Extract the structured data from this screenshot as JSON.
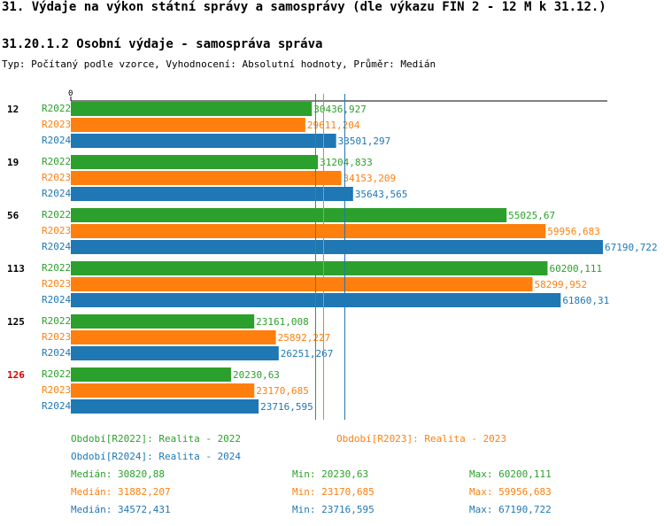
{
  "title": "31. Výdaje na výkon státní správy a samosprávy (dle výkazu FIN 2 - 12 M k 31.12.)",
  "subtitle": "31.20.1.2 Osobní výdaje - samospráva správa",
  "typeline": "Typ: Počítaný podle vzorce, Vyhodnocení: Absolutní hodnoty, Průměr: Medián",
  "colors": {
    "R2022": "#2ca02c",
    "R2023": "#ff7f0e",
    "R2024": "#1f77b4",
    "highlight": "#dd0000"
  },
  "chart_data": {
    "type": "bar",
    "orientation": "horizontal",
    "axis_zero_label": "0",
    "xlim": [
      0,
      67190.722
    ],
    "categories": [
      "12",
      "19",
      "56",
      "113",
      "125",
      "126"
    ],
    "highlighted_category": "126",
    "series": [
      {
        "name": "R2022",
        "values": [
          30436.927,
          31204.833,
          55025.67,
          60200.111,
          23161.008,
          20230.63
        ],
        "labels": [
          "30436,927",
          "31204,833",
          "55025,67",
          "60200,111",
          "23161,008",
          "20230,63"
        ]
      },
      {
        "name": "R2023",
        "values": [
          29611.204,
          34153.209,
          59956.683,
          58299.952,
          25892.227,
          23170.685
        ],
        "labels": [
          "29611,204",
          "34153,209",
          "59956,683",
          "58299,952",
          "25892,227",
          "23170,685"
        ]
      },
      {
        "name": "R2024",
        "values": [
          33501.297,
          35643.565,
          67190.722,
          61860.31,
          26251.267,
          23716.595
        ],
        "labels": [
          "33501,297",
          "35643,565",
          "67190,722",
          "61860,31",
          "26251,267",
          "23716,595"
        ]
      }
    ],
    "medians": [
      30820.88,
      31882.207,
      34572.431
    ]
  },
  "legend": {
    "period_labels": [
      "Období[R2022]: Realita - 2022",
      "Období[R2023]: Realita - 2023",
      "Období[R2024]: Realita - 2024"
    ],
    "stats": [
      {
        "median": "Medián: 30820,88",
        "min": "Min: 20230,63",
        "max": "Max: 60200,111"
      },
      {
        "median": "Medián: 31882,207",
        "min": "Min: 23170,685",
        "max": "Max: 59956,683"
      },
      {
        "median": "Medián: 34572,431",
        "min": "Min: 23716,595",
        "max": "Max: 67190,722"
      }
    ]
  }
}
